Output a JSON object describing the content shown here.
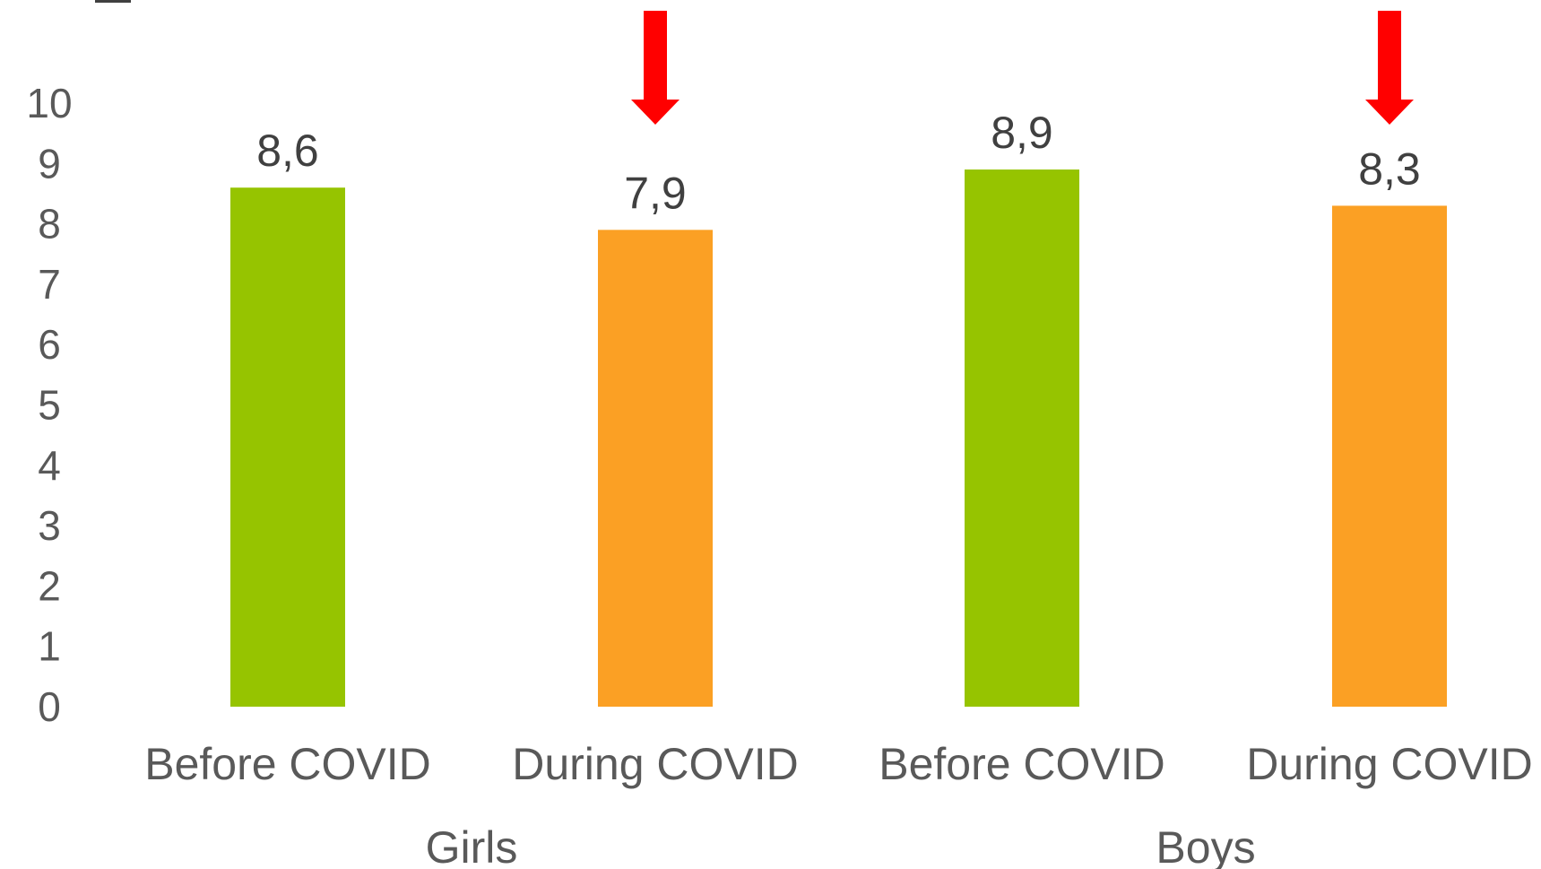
{
  "chart_data": {
    "type": "bar",
    "categories": [
      "Before COVID",
      "During COVID",
      "Before COVID",
      "During COVID"
    ],
    "groups": [
      {
        "label": "Girls",
        "span": [
          0,
          1
        ]
      },
      {
        "label": "Boys",
        "span": [
          2,
          3
        ]
      }
    ],
    "values": [
      8.6,
      7.9,
      8.9,
      8.3
    ],
    "data_labels": [
      "8,6",
      "7,9",
      "8,9",
      "8,3"
    ],
    "bar_colors": [
      "#96c400",
      "#fba024",
      "#96c400",
      "#fba024"
    ],
    "arrows_on": [
      1,
      3
    ],
    "arrow_color": "#ff0000",
    "ylim": [
      0,
      10
    ],
    "yticks": [
      "0",
      "1",
      "2",
      "3",
      "4",
      "5",
      "6",
      "7",
      "8",
      "9",
      "10"
    ],
    "title": "",
    "xlabel": "",
    "ylabel": "",
    "grid": false,
    "legend": "none"
  }
}
